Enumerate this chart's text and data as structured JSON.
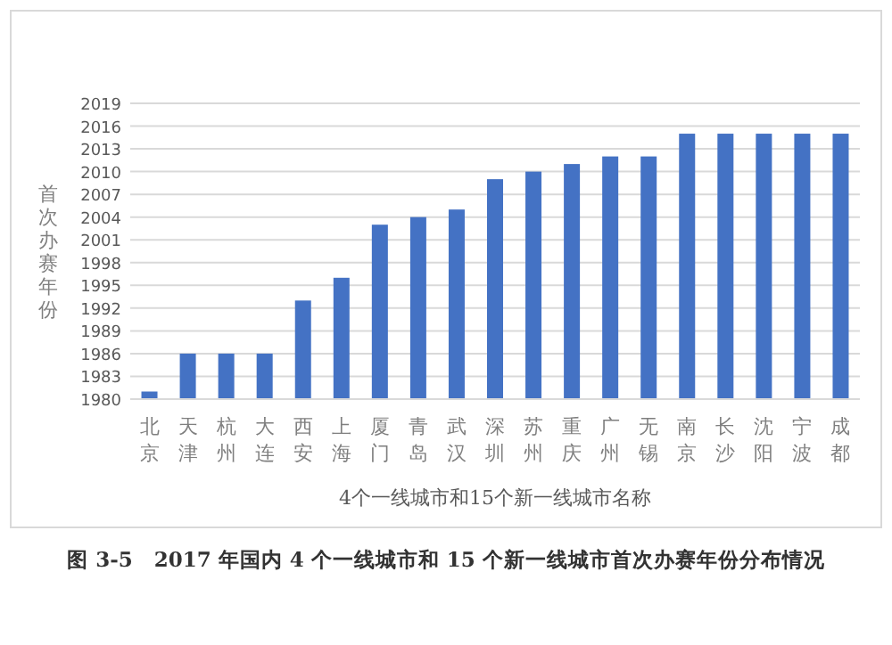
{
  "chart_data": {
    "type": "bar",
    "categories": [
      "北京",
      "天津",
      "杭州",
      "大连",
      "西安",
      "上海",
      "厦门",
      "青岛",
      "武汉",
      "深圳",
      "苏州",
      "重庆",
      "广州",
      "无锡",
      "南京",
      "长沙",
      "沈阳",
      "宁波",
      "成都"
    ],
    "values": [
      1981,
      1986,
      1986,
      1986,
      1993,
      1996,
      2003,
      2004,
      2005,
      2009,
      2010,
      2011,
      2012,
      2012,
      2015,
      2015,
      2015,
      2015,
      2015
    ],
    "color": "#4472c4",
    "ylim": [
      1980,
      2019
    ],
    "yticks": [
      1980,
      1983,
      1986,
      1989,
      1992,
      1995,
      1998,
      2001,
      2004,
      2007,
      2010,
      2013,
      2016,
      2019
    ],
    "grid": "y",
    "xlabel": "4个一线城市和15个新一线城市名称",
    "ylabel": "首次办赛年份",
    "annotations": [
      "图 3-5　2017 年国内 4 个一线城市和 15 个新一线城市首次办赛年份分布情况"
    ]
  }
}
